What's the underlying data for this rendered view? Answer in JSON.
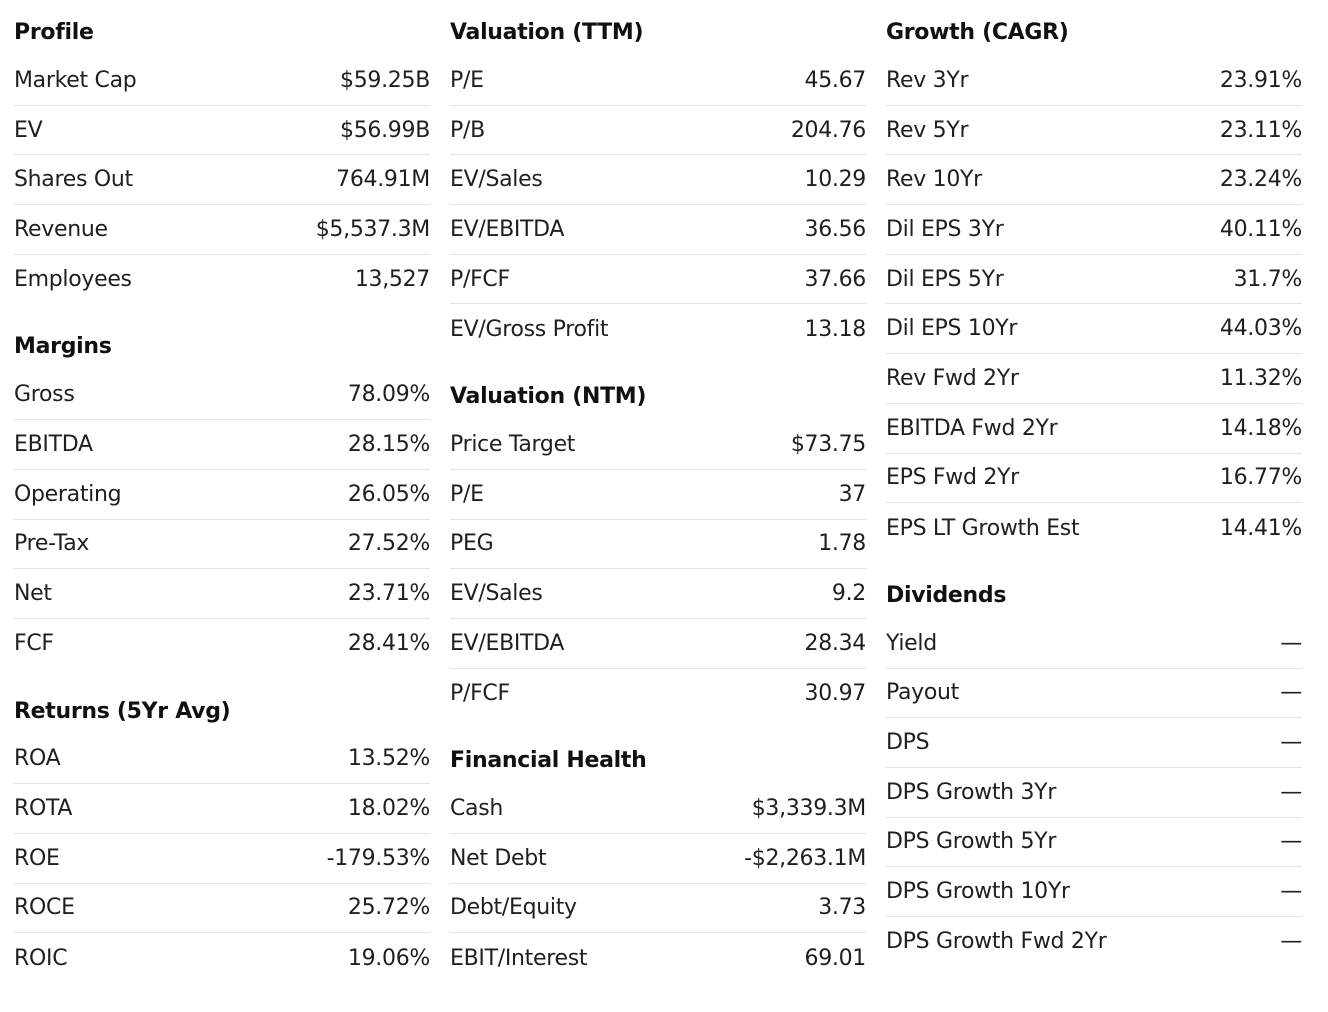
{
  "columns": [
    {
      "sections": [
        {
          "title": "Profile",
          "rows": [
            {
              "label": "Market Cap",
              "value": "$59.25B"
            },
            {
              "label": "EV",
              "value": "$56.99B"
            },
            {
              "label": "Shares Out",
              "value": "764.91M"
            },
            {
              "label": "Revenue",
              "value": "$5,537.3M"
            },
            {
              "label": "Employees",
              "value": "13,527"
            }
          ]
        },
        {
          "title": "Margins",
          "rows": [
            {
              "label": "Gross",
              "value": "78.09%"
            },
            {
              "label": "EBITDA",
              "value": "28.15%"
            },
            {
              "label": "Operating",
              "value": "26.05%"
            },
            {
              "label": "Pre-Tax",
              "value": "27.52%"
            },
            {
              "label": "Net",
              "value": "23.71%"
            },
            {
              "label": "FCF",
              "value": "28.41%"
            }
          ]
        },
        {
          "title": "Returns (5Yr Avg)",
          "rows": [
            {
              "label": "ROA",
              "value": "13.52%"
            },
            {
              "label": "ROTA",
              "value": "18.02%"
            },
            {
              "label": "ROE",
              "value": "-179.53%"
            },
            {
              "label": "ROCE",
              "value": "25.72%"
            },
            {
              "label": "ROIC",
              "value": "19.06%"
            }
          ]
        }
      ]
    },
    {
      "sections": [
        {
          "title": "Valuation (TTM)",
          "rows": [
            {
              "label": "P/E",
              "value": "45.67"
            },
            {
              "label": "P/B",
              "value": "204.76"
            },
            {
              "label": "EV/Sales",
              "value": "10.29"
            },
            {
              "label": "EV/EBITDA",
              "value": "36.56"
            },
            {
              "label": "P/FCF",
              "value": "37.66"
            },
            {
              "label": "EV/Gross Profit",
              "value": "13.18"
            }
          ]
        },
        {
          "title": "Valuation (NTM)",
          "rows": [
            {
              "label": "Price Target",
              "value": "$73.75"
            },
            {
              "label": "P/E",
              "value": "37"
            },
            {
              "label": "PEG",
              "value": "1.78"
            },
            {
              "label": "EV/Sales",
              "value": "9.2"
            },
            {
              "label": "EV/EBITDA",
              "value": "28.34"
            },
            {
              "label": "P/FCF",
              "value": "30.97"
            }
          ]
        },
        {
          "title": "Financial Health",
          "rows": [
            {
              "label": "Cash",
              "value": "$3,339.3M"
            },
            {
              "label": "Net Debt",
              "value": "-$2,263.1M"
            },
            {
              "label": "Debt/Equity",
              "value": "3.73"
            },
            {
              "label": "EBIT/Interest",
              "value": "69.01"
            }
          ]
        }
      ]
    },
    {
      "sections": [
        {
          "title": "Growth (CAGR)",
          "rows": [
            {
              "label": "Rev 3Yr",
              "value": "23.91%"
            },
            {
              "label": "Rev 5Yr",
              "value": "23.11%"
            },
            {
              "label": "Rev 10Yr",
              "value": "23.24%"
            },
            {
              "label": "Dil EPS 3Yr",
              "value": "40.11%"
            },
            {
              "label": "Dil EPS 5Yr",
              "value": "31.7%"
            },
            {
              "label": "Dil EPS 10Yr",
              "value": "44.03%"
            },
            {
              "label": "Rev Fwd 2Yr",
              "value": "11.32%"
            },
            {
              "label": "EBITDA Fwd 2Yr",
              "value": "14.18%"
            },
            {
              "label": "EPS Fwd 2Yr",
              "value": "16.77%"
            },
            {
              "label": "EPS LT Growth Est",
              "value": "14.41%"
            }
          ]
        },
        {
          "title": "Dividends",
          "rows": [
            {
              "label": "Yield",
              "value": "—"
            },
            {
              "label": "Payout",
              "value": "—"
            },
            {
              "label": "DPS",
              "value": "—"
            },
            {
              "label": "DPS Growth 3Yr",
              "value": "—"
            },
            {
              "label": "DPS Growth 5Yr",
              "value": "—"
            },
            {
              "label": "DPS Growth 10Yr",
              "value": "—"
            },
            {
              "label": "DPS Growth Fwd 2Yr",
              "value": "—"
            }
          ]
        }
      ]
    }
  ]
}
